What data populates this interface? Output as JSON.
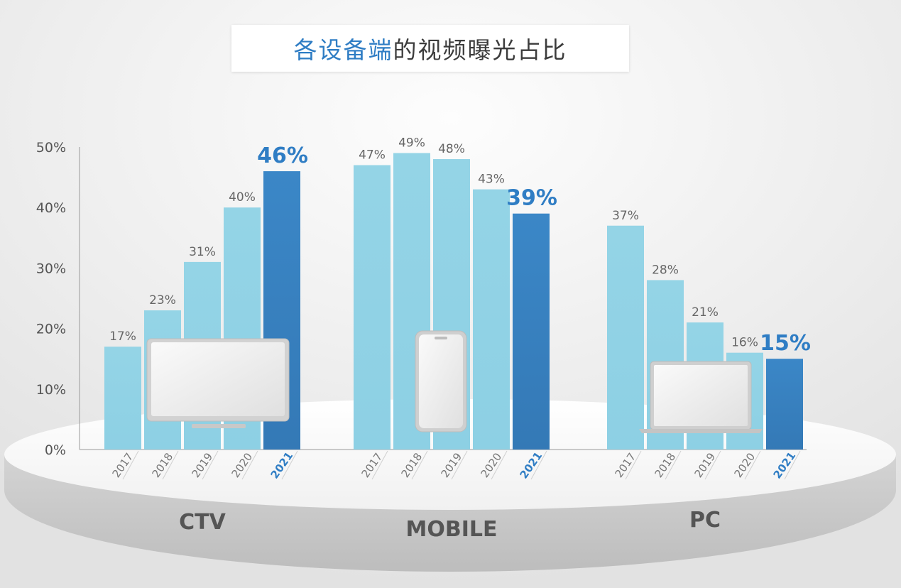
{
  "title": {
    "highlight": "各设备端",
    "rest": "的视频曝光占比"
  },
  "colors": {
    "bar_light": "#94d4e6",
    "bar_highlight": "#3a84c4",
    "label_text": "#666666",
    "highlight_text": "#2f7dc4",
    "group_label": "#555555"
  },
  "chart_data": {
    "type": "bar",
    "title": "各设备端的视频曝光占比",
    "xlabel": "",
    "ylabel": "",
    "ylim": [
      0,
      50
    ],
    "yticks": [
      "0%",
      "10%",
      "20%",
      "30%",
      "40%",
      "50%"
    ],
    "grid": false,
    "legend": "none",
    "groups": [
      {
        "name": "CTV",
        "years": [
          "2017",
          "2018",
          "2019",
          "2020",
          "2021"
        ],
        "values": [
          17,
          23,
          31,
          40,
          46
        ],
        "labels": [
          "17%",
          "23%",
          "31%",
          "40%",
          "46%"
        ],
        "icon": "tv-icon"
      },
      {
        "name": "MOBILE",
        "years": [
          "2017",
          "2018",
          "2019",
          "2020",
          "2021"
        ],
        "values": [
          47,
          49,
          48,
          43,
          39
        ],
        "labels": [
          "47%",
          "49%",
          "48%",
          "43%",
          "39%"
        ],
        "icon": "smartphone-icon"
      },
      {
        "name": "PC",
        "years": [
          "2017",
          "2018",
          "2019",
          "2020",
          "2021"
        ],
        "values": [
          37,
          28,
          21,
          16,
          15
        ],
        "labels": [
          "37%",
          "28%",
          "21%",
          "16%",
          "15%"
        ],
        "icon": "laptop-icon"
      }
    ]
  }
}
